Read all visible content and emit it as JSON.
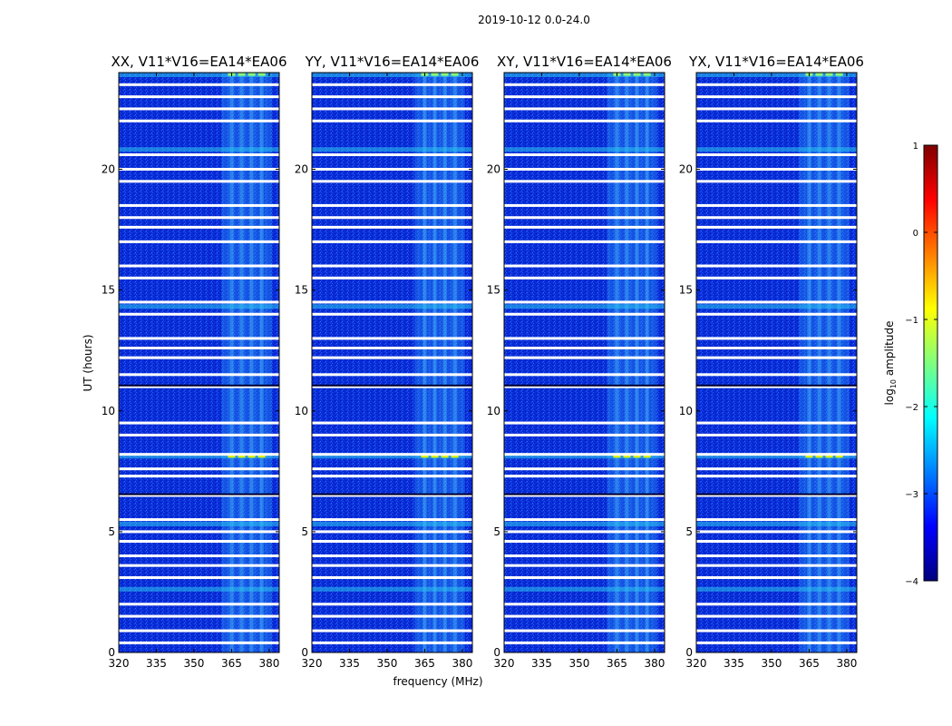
{
  "figure_title": "2019-10-12 0.0-24.0",
  "xlabel": "frequency (MHz)",
  "ylabel": "UT (hours)",
  "colorbar": {
    "label_main": "log",
    "label_sub": "10",
    "label_rest": " amplitude",
    "ticks": [
      "1",
      "0",
      "−1",
      "−2",
      "−3",
      "−4"
    ],
    "tick_values": [
      1,
      0,
      -1,
      -2,
      -3,
      -4
    ],
    "range": [
      -4,
      1
    ],
    "colormap": "jet",
    "colors": [
      "#00007f",
      "#0000ff",
      "#007fff",
      "#00ffff",
      "#7fff7f",
      "#ffff00",
      "#ff7f00",
      "#ff0000",
      "#7f0000"
    ]
  },
  "chart_data": {
    "type": "heatmap",
    "xlim": [
      320,
      384
    ],
    "ylim": [
      0,
      24
    ],
    "x_ticks": [
      320,
      335,
      350,
      365,
      380
    ],
    "x_tick_labels": [
      "320",
      "335",
      "350",
      "365",
      "380"
    ],
    "y_ticks": [
      0,
      5,
      10,
      15,
      20
    ],
    "y_tick_labels": [
      "0",
      "5",
      "10",
      "15",
      "20"
    ],
    "background_log_amplitude": -3.1,
    "rfi_band_mhz": [
      361,
      381
    ],
    "rfi_channels_mhz": [
      365,
      369,
      373,
      377
    ],
    "flagged_rows_ut_hours": [
      0.4,
      0.9,
      1.5,
      2.0,
      3.1,
      3.6,
      4.0,
      4.6,
      5.0,
      5.5,
      6.5,
      7.3,
      7.6,
      8.2,
      9.0,
      9.5,
      11.0,
      11.5,
      12.2,
      12.6,
      13.0,
      14.0,
      14.5,
      15.5,
      16.0,
      17.0,
      17.6,
      18.0,
      18.5,
      19.5,
      20.0,
      20.6,
      22.0,
      22.5,
      23.0,
      23.5
    ],
    "high_rows_ut_hours": [
      2.6,
      5.3,
      8.1,
      14.3,
      20.8,
      24.0
    ],
    "panels": [
      {
        "title": "XX, V11*V16=EA14*EA06",
        "pol": "XX"
      },
      {
        "title": "YY, V11*V16=EA14*EA06",
        "pol": "YY"
      },
      {
        "title": "XY, V11*V16=EA14*EA06",
        "pol": "XY"
      },
      {
        "title": "YX, V11*V16=EA14*EA06",
        "pol": "YX"
      }
    ]
  }
}
